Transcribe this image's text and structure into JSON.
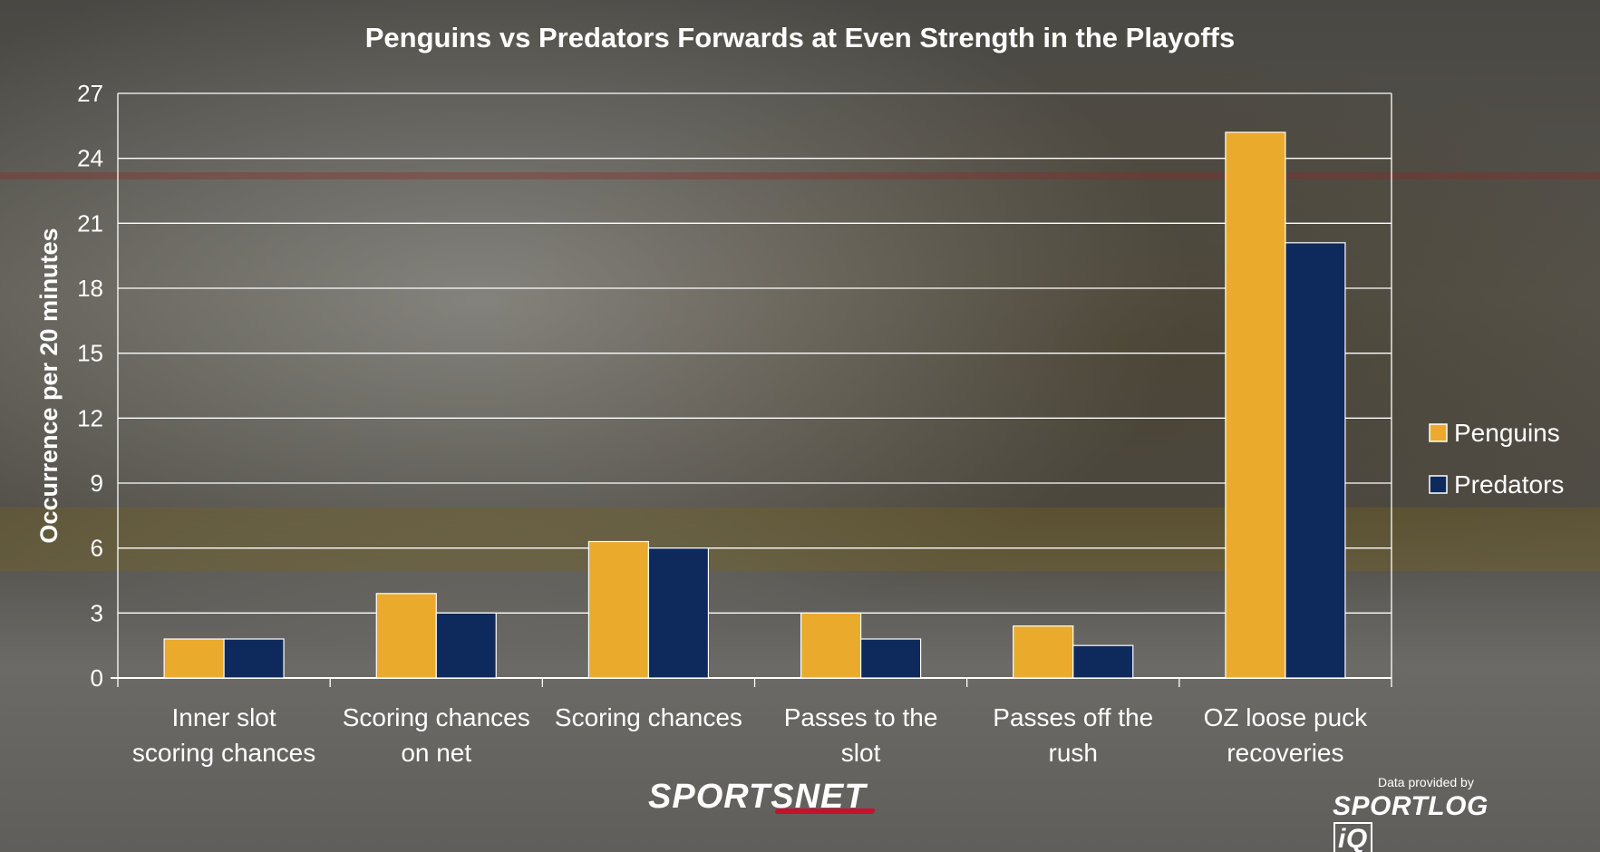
{
  "chart_data": {
    "type": "bar",
    "title": "Penguins vs Predators Forwards at Even Strength in the Playoffs",
    "ylabel": "Occurrence per 20 minutes",
    "xlabel": "",
    "ylim": [
      0,
      27
    ],
    "yticks": [
      "0",
      "3",
      "6",
      "9",
      "12",
      "15",
      "18",
      "21",
      "24",
      "27"
    ],
    "grid": true,
    "legend_position": "right",
    "categories": [
      [
        "Inner slot",
        "scoring chances"
      ],
      [
        "Scoring chances",
        "on net"
      ],
      [
        "Scoring chances"
      ],
      [
        "Passes to the",
        "slot"
      ],
      [
        "Passes off the",
        "rush"
      ],
      [
        "OZ loose puck",
        "recoveries"
      ]
    ],
    "series": [
      {
        "name": "Penguins",
        "color": "#eaaa2c",
        "values": [
          1.8,
          3.9,
          6.3,
          3.0,
          2.4,
          25.2
        ]
      },
      {
        "name": "Predators",
        "color": "#0e2a5c",
        "values": [
          1.8,
          3.0,
          6.0,
          1.8,
          1.5,
          20.1
        ]
      }
    ]
  },
  "branding": {
    "broadcaster": "SPORTSNET",
    "provider_note": "Data provided by",
    "provider_name_main": "SPORTLOG",
    "provider_name_box": "iQ"
  }
}
